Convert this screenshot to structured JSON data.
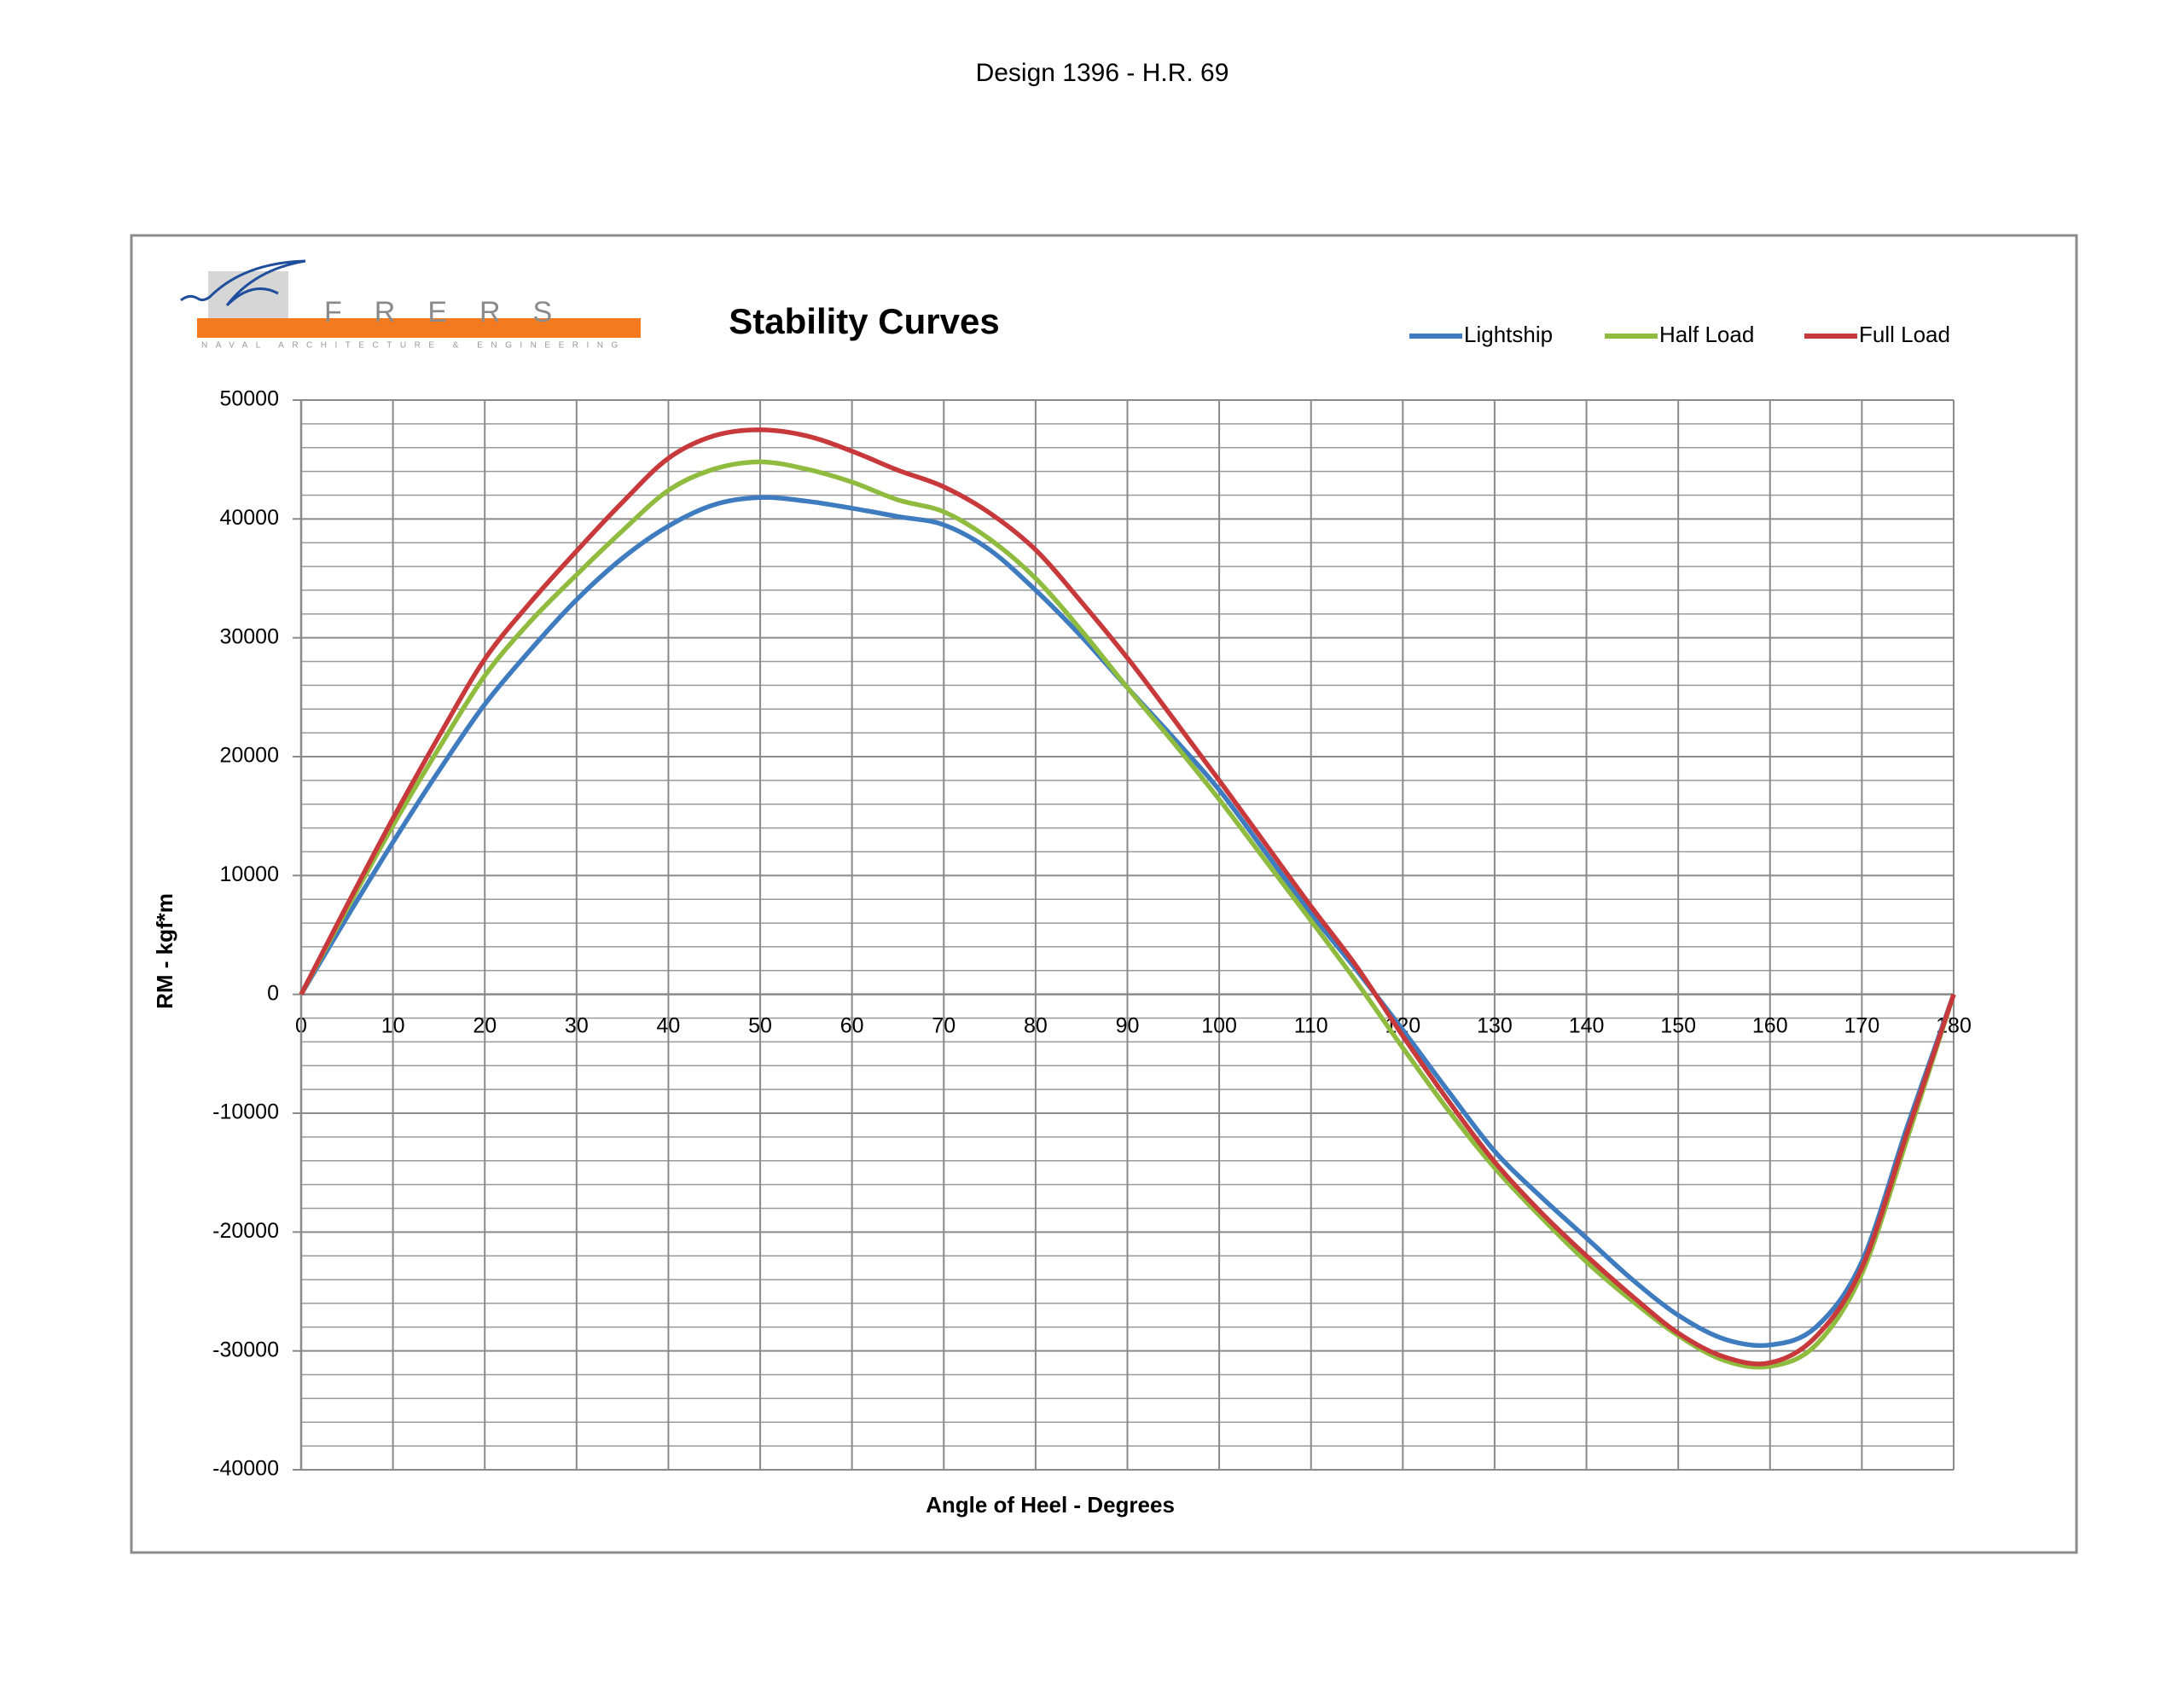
{
  "page_title": "Design 1396 - H.R. 69",
  "logo": {
    "name": "FRERS",
    "tagline": "NAVAL ARCHITECTURE & ENGINEERING"
  },
  "chart_data": {
    "type": "line",
    "title": "Stability Curves",
    "x_label": "Angle of Heel - Degrees",
    "y_label": "RM  - kgf*m",
    "x": [
      0,
      5,
      10,
      15,
      20,
      25,
      30,
      35,
      40,
      45,
      50,
      55,
      60,
      65,
      70,
      75,
      80,
      85,
      90,
      95,
      100,
      105,
      110,
      115,
      120,
      125,
      130,
      135,
      140,
      145,
      150,
      155,
      160,
      165,
      170,
      175,
      180
    ],
    "series": [
      {
        "name": "Lightship",
        "color": "#3f7cbf",
        "values": [
          0,
          6500,
          12800,
          18800,
          24400,
          29000,
          33200,
          36700,
          39400,
          41200,
          41800,
          41500,
          40900,
          40200,
          39500,
          37400,
          34000,
          30100,
          25800,
          21600,
          17200,
          12000,
          6800,
          2000,
          -3000,
          -8200,
          -13200,
          -17000,
          -20500,
          -24000,
          -27000,
          -29000,
          -29500,
          -28000,
          -22500,
          -11000,
          0
        ]
      },
      {
        "name": "Half Load",
        "color": "#8fbc3f",
        "values": [
          0,
          7200,
          14200,
          20700,
          26800,
          31400,
          35300,
          39000,
          42400,
          44200,
          44800,
          44200,
          43100,
          41600,
          40600,
          38300,
          35000,
          30600,
          25800,
          21200,
          16400,
          11300,
          6200,
          1000,
          -4500,
          -9800,
          -14600,
          -18700,
          -22500,
          -25800,
          -28700,
          -30800,
          -31300,
          -29500,
          -23500,
          -12000,
          0
        ]
      },
      {
        "name": "Full Load",
        "color": "#c8393b",
        "values": [
          0,
          7500,
          14800,
          21700,
          28200,
          33000,
          37300,
          41400,
          45100,
          47000,
          47500,
          47000,
          45700,
          44100,
          42700,
          40500,
          37400,
          33000,
          28300,
          23200,
          18000,
          12700,
          7400,
          2300,
          -3500,
          -9000,
          -14100,
          -18300,
          -22000,
          -25400,
          -28500,
          -30500,
          -31000,
          -28800,
          -23000,
          -11500,
          0
        ]
      }
    ],
    "xlim": [
      0,
      180
    ],
    "xticks": [
      0,
      10,
      20,
      30,
      40,
      50,
      60,
      70,
      80,
      90,
      100,
      110,
      120,
      130,
      140,
      150,
      160,
      170,
      180
    ],
    "ylim": [
      -40000,
      50000
    ],
    "yticks": [
      -40000,
      -30000,
      -20000,
      -10000,
      0,
      10000,
      20000,
      30000,
      40000,
      50000
    ],
    "grid": true,
    "legend": "top-right"
  }
}
